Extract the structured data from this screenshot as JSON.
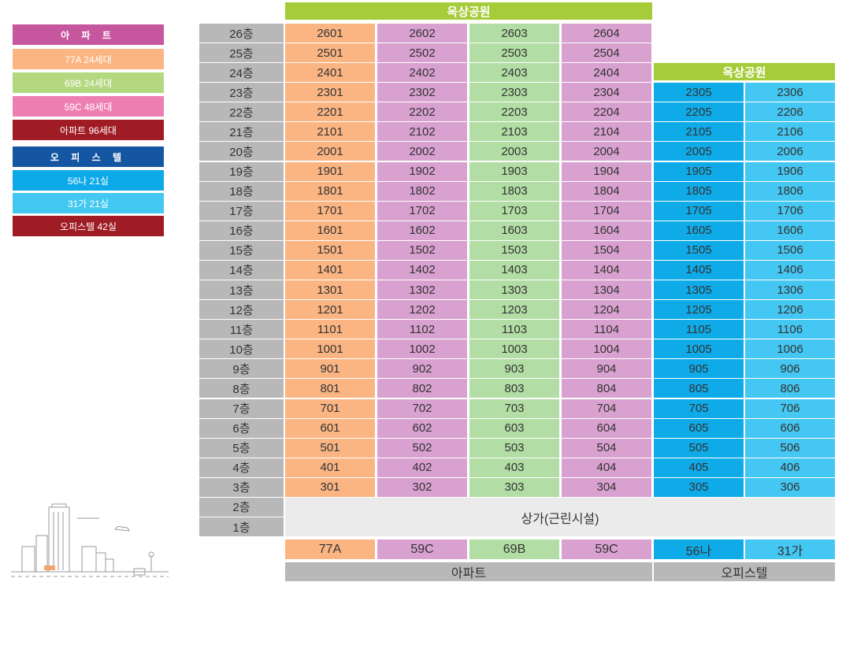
{
  "legend": {
    "apartment_header": "아 파 트",
    "apt_77a": "77A 24세대",
    "apt_69b": "69B 24세대",
    "apt_59c": "59C 48세대",
    "apt_total": "아파트 96세대",
    "officetel_header": "오 피 스 텔",
    "off_56": "56나 21실",
    "off_31": "31가 21실",
    "off_total": "오피스텔 42실"
  },
  "colors": {
    "apt_header": "#c6579f",
    "apt_77a": "#fbb583",
    "apt_69b": "#b3d87f",
    "apt_59c": "#ee7fb3",
    "apt_total": "#a01c24",
    "off_header": "#1556a3",
    "off_56": "#0daae9",
    "off_31": "#43c8f1",
    "off_total": "#a01c24",
    "rooftop": "#a6cc3a",
    "floor_label": "#b8b8b8",
    "col_77a": "#fbb583",
    "col_59c": "#d9a1d0",
    "col_69b": "#b2dda4",
    "col_56": "#0fabe8",
    "col_31": "#44c7f2"
  },
  "rooftop_apt": "옥상공원",
  "rooftop_off": "옥상공원",
  "floors": [
    "26층",
    "25층",
    "24층",
    "23층",
    "22층",
    "21층",
    "20층",
    "19층",
    "18층",
    "17층",
    "16층",
    "15층",
    "14층",
    "13층",
    "12층",
    "11층",
    "10층",
    "9층",
    "8층",
    "7층",
    "6층",
    "5층",
    "4층",
    "3층",
    "2층",
    "1층"
  ],
  "apt_units": [
    [
      "2601",
      "2602",
      "2603",
      "2604"
    ],
    [
      "2501",
      "2502",
      "2503",
      "2504"
    ],
    [
      "2401",
      "2402",
      "2403",
      "2404"
    ],
    [
      "2301",
      "2302",
      "2303",
      "2304"
    ],
    [
      "2201",
      "2202",
      "2203",
      "2204"
    ],
    [
      "2101",
      "2102",
      "2103",
      "2104"
    ],
    [
      "2001",
      "2002",
      "2003",
      "2004"
    ],
    [
      "1901",
      "1902",
      "1903",
      "1904"
    ],
    [
      "1801",
      "1802",
      "1803",
      "1804"
    ],
    [
      "1701",
      "1702",
      "1703",
      "1704"
    ],
    [
      "1601",
      "1602",
      "1603",
      "1604"
    ],
    [
      "1501",
      "1502",
      "1503",
      "1504"
    ],
    [
      "1401",
      "1402",
      "1403",
      "1404"
    ],
    [
      "1301",
      "1302",
      "1303",
      "1304"
    ],
    [
      "1201",
      "1202",
      "1203",
      "1204"
    ],
    [
      "1101",
      "1102",
      "1103",
      "1104"
    ],
    [
      "1001",
      "1002",
      "1003",
      "1004"
    ],
    [
      "901",
      "902",
      "903",
      "904"
    ],
    [
      "801",
      "802",
      "803",
      "804"
    ],
    [
      "701",
      "702",
      "703",
      "704"
    ],
    [
      "601",
      "602",
      "603",
      "604"
    ],
    [
      "501",
      "502",
      "503",
      "504"
    ],
    [
      "401",
      "402",
      "403",
      "404"
    ],
    [
      "301",
      "302",
      "303",
      "304"
    ]
  ],
  "off_units": [
    [
      "2305",
      "2306"
    ],
    [
      "2205",
      "2206"
    ],
    [
      "2105",
      "2106"
    ],
    [
      "2005",
      "2006"
    ],
    [
      "1905",
      "1906"
    ],
    [
      "1805",
      "1806"
    ],
    [
      "1705",
      "1706"
    ],
    [
      "1605",
      "1606"
    ],
    [
      "1505",
      "1506"
    ],
    [
      "1405",
      "1406"
    ],
    [
      "1305",
      "1306"
    ],
    [
      "1205",
      "1206"
    ],
    [
      "1105",
      "1106"
    ],
    [
      "1005",
      "1006"
    ],
    [
      "905",
      "906"
    ],
    [
      "805",
      "806"
    ],
    [
      "705",
      "706"
    ],
    [
      "605",
      "606"
    ],
    [
      "505",
      "506"
    ],
    [
      "405",
      "406"
    ],
    [
      "305",
      "306"
    ]
  ],
  "commercial": "상가(근린시설)",
  "unit_types": [
    "77A",
    "59C",
    "69B",
    "59C",
    "56나",
    "31가"
  ],
  "categories": {
    "apartment": "아파트",
    "officetel": "오피스텔"
  }
}
